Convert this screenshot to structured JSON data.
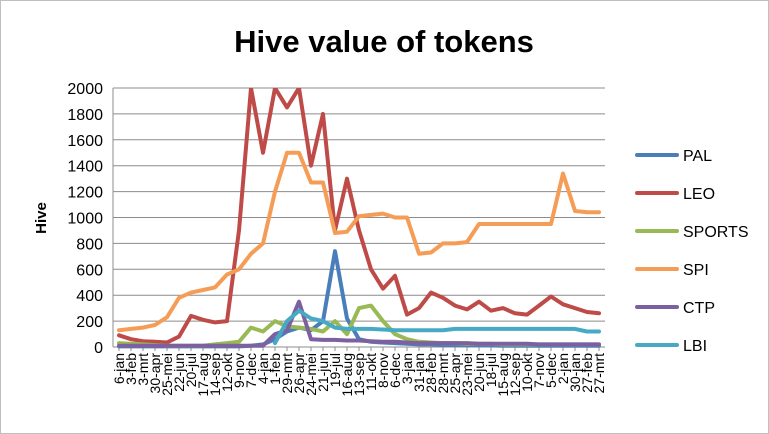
{
  "chart_data": {
    "type": "line",
    "title": "Hive value of tokens",
    "ylabel": "Hive",
    "xlabel": "",
    "ylim": [
      0,
      2000
    ],
    "y_ticks": [
      0,
      200,
      400,
      600,
      800,
      1000,
      1200,
      1400,
      1600,
      1800,
      2000
    ],
    "grid": true,
    "legend_position": "right",
    "x_tick_labels": [
      "6-jan",
      "3-feb",
      "3-mrt",
      "30-apr",
      "25-mei",
      "22-jun",
      "20-jul",
      "17-aug",
      "14-sep",
      "12-okt",
      "9-nov",
      "7-dec",
      "4-jan",
      "1-feb",
      "29-mrt",
      "26-apr",
      "24-mei",
      "21-jun",
      "19-jul",
      "16-aug",
      "13-sep",
      "11-okt",
      "8-nov",
      "6-dec",
      "3-jan",
      "31-jan",
      "28-feb",
      "28-mrt",
      "25-apr",
      "23-mei",
      "20-jun",
      "18-jul",
      "15-aug",
      "12-sep",
      "10-okt",
      "7-nov",
      "5-dec",
      "2-jan",
      "30-jan",
      "27-feb",
      "27-mrt"
    ],
    "series": [
      {
        "name": "PAL",
        "color": "#4a7ebb",
        "values": [
          5,
          5,
          5,
          5,
          5,
          5,
          5,
          5,
          5,
          5,
          5,
          10,
          20,
          60,
          120,
          150,
          130,
          200,
          740,
          220,
          60,
          40,
          35,
          30,
          25,
          20,
          20,
          15,
          15,
          15,
          15,
          12,
          10,
          10,
          10,
          10,
          10,
          10,
          10,
          10,
          10
        ]
      },
      {
        "name": "LEO",
        "color": "#be4b48",
        "values": [
          90,
          60,
          45,
          40,
          35,
          80,
          240,
          210,
          190,
          200,
          900,
          2000,
          1500,
          2000,
          1850,
          2000,
          1400,
          1800,
          900,
          1300,
          900,
          600,
          450,
          550,
          250,
          300,
          420,
          380,
          320,
          290,
          350,
          280,
          300,
          260,
          250,
          320,
          390,
          330,
          300,
          270,
          260
        ]
      },
      {
        "name": "SPORTS",
        "color": "#98b954",
        "values": [
          30,
          25,
          20,
          15,
          10,
          10,
          10,
          10,
          20,
          30,
          40,
          150,
          120,
          200,
          160,
          150,
          140,
          120,
          200,
          100,
          300,
          320,
          200,
          100,
          60,
          40,
          35,
          30,
          30,
          25,
          25,
          25,
          20,
          20,
          20,
          20,
          20,
          20,
          20,
          20,
          20
        ]
      },
      {
        "name": "SPI",
        "color": "#f59d56",
        "values": [
          130,
          140,
          150,
          170,
          230,
          380,
          420,
          440,
          460,
          560,
          600,
          720,
          800,
          1200,
          1500,
          1500,
          1270,
          1270,
          880,
          890,
          1010,
          1020,
          1030,
          1000,
          1000,
          720,
          730,
          800,
          800,
          810,
          950,
          950,
          950,
          950,
          950,
          950,
          950,
          1340,
          1050,
          1040,
          1040
        ]
      },
      {
        "name": "CTP",
        "color": "#7d60a0",
        "values": [
          10,
          10,
          10,
          10,
          10,
          10,
          10,
          10,
          10,
          10,
          10,
          10,
          10,
          100,
          130,
          350,
          60,
          55,
          55,
          50,
          50,
          45,
          40,
          40,
          35,
          30,
          30,
          30,
          30,
          30,
          25,
          25,
          25,
          25,
          25,
          20,
          20,
          20,
          20,
          20,
          20
        ]
      },
      {
        "name": "LBI",
        "color": "#46aac5",
        "values": [
          null,
          null,
          null,
          null,
          null,
          null,
          null,
          null,
          null,
          null,
          null,
          null,
          null,
          30,
          200,
          280,
          220,
          200,
          150,
          140,
          140,
          140,
          135,
          130,
          130,
          130,
          130,
          130,
          140,
          140,
          140,
          140,
          140,
          140,
          140,
          140,
          140,
          140,
          140,
          120,
          120
        ]
      }
    ]
  }
}
